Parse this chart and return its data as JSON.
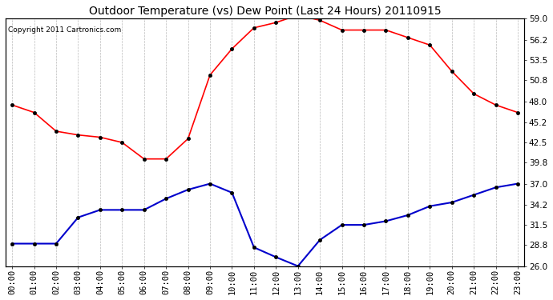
{
  "title": "Outdoor Temperature (vs) Dew Point (Last 24 Hours) 20110915",
  "copyright_text": "Copyright 2011 Cartronics.com",
  "x_labels": [
    "00:00",
    "01:00",
    "02:00",
    "03:00",
    "04:00",
    "05:00",
    "06:00",
    "07:00",
    "08:00",
    "09:00",
    "10:00",
    "11:00",
    "12:00",
    "13:00",
    "14:00",
    "15:00",
    "16:00",
    "17:00",
    "18:00",
    "19:00",
    "20:00",
    "21:00",
    "22:00",
    "23:00"
  ],
  "temp_data": [
    47.5,
    46.5,
    44.0,
    43.5,
    43.2,
    42.5,
    40.3,
    40.3,
    43.0,
    51.5,
    55.0,
    57.8,
    58.5,
    59.5,
    58.8,
    57.5,
    57.5,
    57.5,
    56.5,
    55.5,
    52.0,
    49.0,
    47.5,
    46.5
  ],
  "dew_data": [
    29.0,
    29.0,
    29.0,
    32.5,
    33.5,
    33.5,
    33.5,
    35.0,
    36.2,
    37.0,
    35.8,
    28.5,
    27.2,
    26.0,
    29.5,
    31.5,
    31.5,
    32.0,
    32.8,
    34.0,
    34.5,
    35.5,
    36.5,
    37.0
  ],
  "temp_color": "#ff0000",
  "dew_color": "#0000cc",
  "ylim": [
    26.0,
    59.0
  ],
  "yticks": [
    26.0,
    28.8,
    31.5,
    34.2,
    37.0,
    39.8,
    42.5,
    45.2,
    48.0,
    50.8,
    53.5,
    56.2,
    59.0
  ],
  "background_color": "#ffffff",
  "grid_color": "#aaaaaa",
  "title_fontsize": 10,
  "tick_fontsize": 7.5,
  "copyright_fontsize": 6.5
}
